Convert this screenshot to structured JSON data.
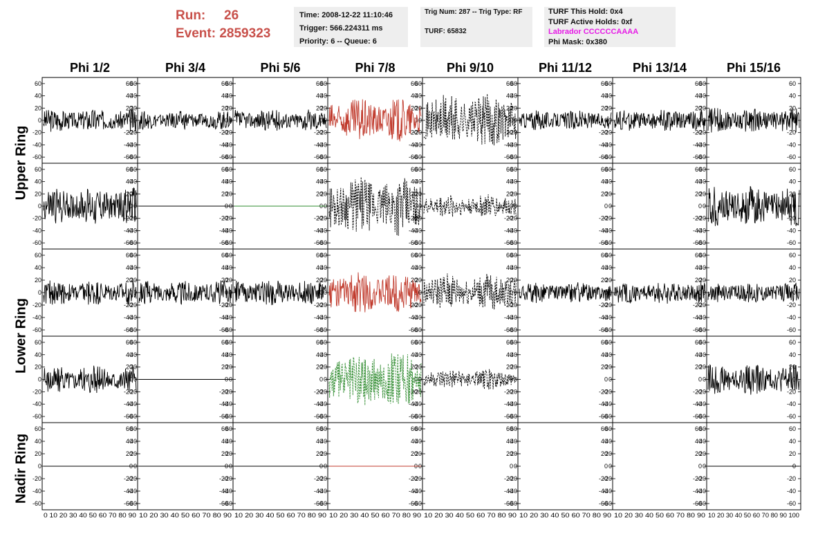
{
  "header": {
    "run_label": "Run:",
    "run_value": "26",
    "event_label": "Event:",
    "event_value": "2859323",
    "time": "Time: 2008-12-22 11:10:46",
    "trigger": "Trigger: 566.224311 ms",
    "priority": "Priority: 6 -- Queue: 6",
    "trig_num": "Trig Num: 287 -- Trig Type: RF",
    "turf": "TURF: 65832",
    "turf_hold": "TURF This Hold: 0x4",
    "turf_active": "TURF Active Holds: 0xf",
    "labrador": "Labrador CCCCCCAAAA",
    "phi_mask": "Phi Mask: 0x380"
  },
  "colors": {
    "run": "#c8504a",
    "red": "#c0392b",
    "green": "#2e8b2e",
    "black": "#000000",
    "magenta": "#e61ae6",
    "info_bg": "#eeeeee"
  },
  "chart_data": {
    "type": "line",
    "columns": [
      "Phi 1/2",
      "Phi 3/4",
      "Phi 5/6",
      "Phi 7/8",
      "Phi 9/10",
      "Phi 11/12",
      "Phi 13/14",
      "Phi 15/16"
    ],
    "rows": [
      "Upper Ring",
      "Upper Ring",
      "Lower Ring",
      "Lower Ring",
      "Nadir Ring"
    ],
    "row_labels": [
      "Upper Ring",
      "Lower Ring",
      "Nadir Ring"
    ],
    "ylim": [
      -70,
      70
    ],
    "yticks": [
      -60,
      -40,
      -20,
      0,
      20,
      40,
      60
    ],
    "xlim": [
      0,
      100
    ],
    "xticks_first": "0 10 20 30 40 50 60 70 80 90",
    "xticks": "10 20 30 40 50 60 70 80 90",
    "xticks_last": "10 20 30 40 50 60 70 80 90 100",
    "panels": [
      [
        {
          "amp": 14,
          "color": "black",
          "style": "solid"
        },
        {
          "amp": 11,
          "color": "black",
          "style": "solid"
        },
        {
          "amp": 13,
          "color": "black",
          "style": "solid"
        },
        {
          "amp": 26,
          "color": "red",
          "style": "solid"
        },
        {
          "amp": 32,
          "color": "black",
          "style": "dashed"
        },
        {
          "amp": 12,
          "color": "black",
          "style": "solid"
        },
        {
          "amp": 13,
          "color": "black",
          "style": "solid"
        },
        {
          "amp": 15,
          "color": "black",
          "style": "solid"
        }
      ],
      [
        {
          "amp": 22,
          "color": "black",
          "style": "solid"
        },
        {
          "amp": 0,
          "color": "black",
          "style": "solid"
        },
        {
          "amp": 0,
          "color": "green",
          "style": "solid"
        },
        {
          "amp": 35,
          "color": "black",
          "style": "dashed"
        },
        {
          "amp": 14,
          "color": "black",
          "style": "dashed"
        },
        null,
        null,
        {
          "amp": 24,
          "color": "black",
          "style": "solid"
        }
      ],
      [
        {
          "amp": 15,
          "color": "black",
          "style": "solid"
        },
        {
          "amp": 14,
          "color": "black",
          "style": "solid"
        },
        {
          "amp": 15,
          "color": "black",
          "style": "solid"
        },
        {
          "amp": 24,
          "color": "red",
          "style": "solid"
        },
        {
          "amp": 22,
          "color": "black",
          "style": "dashed"
        },
        {
          "amp": 12,
          "color": "black",
          "style": "solid"
        },
        {
          "amp": 13,
          "color": "black",
          "style": "solid"
        },
        {
          "amp": 12,
          "color": "black",
          "style": "solid"
        }
      ],
      [
        {
          "amp": 16,
          "color": "black",
          "style": "solid"
        },
        {
          "amp": 0,
          "color": "black",
          "style": "solid"
        },
        null,
        {
          "amp": 34,
          "color": "green",
          "style": "dashed"
        },
        {
          "amp": 12,
          "color": "black",
          "style": "dashed"
        },
        null,
        null,
        {
          "amp": 18,
          "color": "black",
          "style": "solid"
        }
      ],
      [
        {
          "amp": 0,
          "color": "black",
          "style": "solid"
        },
        {
          "amp": 0,
          "color": "black",
          "style": "solid"
        },
        {
          "amp": 0,
          "color": "black",
          "style": "solid"
        },
        {
          "amp": 0,
          "color": "red",
          "style": "solid"
        },
        null,
        null,
        null,
        {
          "amp": 0,
          "color": "black",
          "style": "solid"
        }
      ]
    ]
  }
}
